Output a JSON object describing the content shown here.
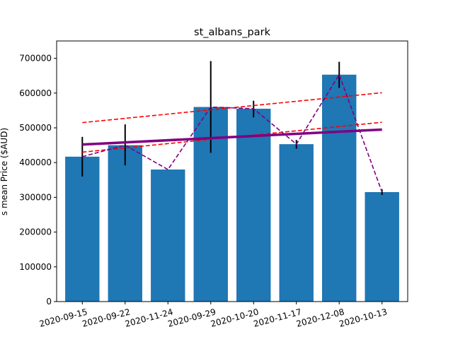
{
  "chart_data": {
    "type": "bar",
    "title": "st_albans_park",
    "xlabel": "",
    "ylabel": "s mean Price ($AUD)",
    "categories": [
      "2020-09-15",
      "2020-09-22",
      "2020-11-24",
      "2020-09-29",
      "2020-10-20",
      "2020-11-17",
      "2020-12-08",
      "2020-10-13"
    ],
    "values": [
      417000,
      450000,
      380000,
      560000,
      555000,
      453000,
      653000,
      315000
    ],
    "error_bars": {
      "low": [
        360000,
        392000,
        null,
        428000,
        530000,
        440000,
        615000,
        307000
      ],
      "high": [
        474000,
        510000,
        null,
        692000,
        578000,
        465000,
        690000,
        323000
      ]
    },
    "ylim": [
      0,
      750000
    ],
    "yticks": [
      0,
      100000,
      200000,
      300000,
      400000,
      500000,
      600000,
      700000
    ],
    "ytick_labels": [
      "0",
      "100000",
      "200000",
      "300000",
      "400000",
      "500000",
      "600000",
      "700000"
    ],
    "xtick_rotation_deg": 15,
    "overlays": {
      "trend_line": {
        "start": 452000,
        "end": 495000,
        "color": "#800080"
      },
      "upper_band": {
        "start": 515000,
        "end": 601000,
        "color": "#ff0000"
      },
      "lower_band": {
        "start": 430000,
        "end": 516000,
        "color": "#ff0000"
      },
      "connecting_line_color": "#800080"
    },
    "bar_color": "#1f77b4",
    "grid": false
  }
}
